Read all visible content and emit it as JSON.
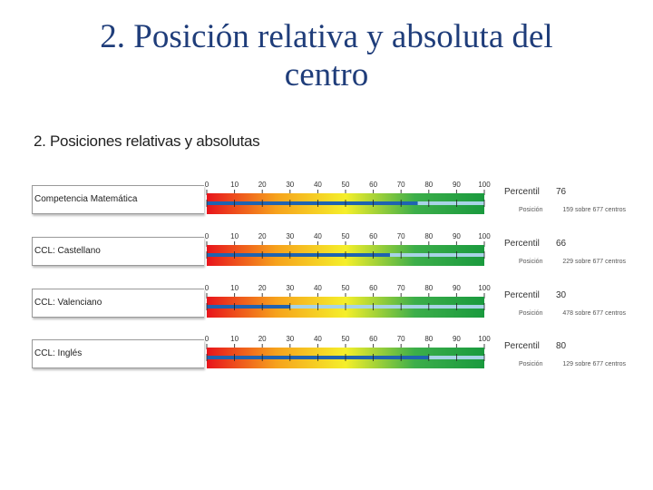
{
  "slide": {
    "title_line1": "2. Posición relativa y absoluta del",
    "title_line2": "centro"
  },
  "section_title": "2. Posiciones relativas y absolutas",
  "colors": {
    "gradient": [
      "#e8141c",
      "#f6a21c",
      "#f5ef2a",
      "#3cae4a",
      "#1a9a3e"
    ],
    "marker": "#1f63b0",
    "track": "#a8d3e6"
  },
  "chart_data": {
    "type": "bar",
    "xlim": [
      0,
      100
    ],
    "ticks": [
      0,
      10,
      20,
      30,
      40,
      50,
      60,
      70,
      80,
      90,
      100
    ],
    "labels": {
      "percentile": "Percentil",
      "position": "Posición",
      "position_suffix": "sobre 677 centros"
    },
    "rows": [
      {
        "name": "Competencia Matemática",
        "percentile": 76,
        "position": 159
      },
      {
        "name": "CCL: Castellano",
        "percentile": 66,
        "position": 229
      },
      {
        "name": "CCL: Valenciano",
        "percentile": 30,
        "position": 478
      },
      {
        "name": "CCL: Inglés",
        "percentile": 80,
        "position": 129
      }
    ]
  }
}
